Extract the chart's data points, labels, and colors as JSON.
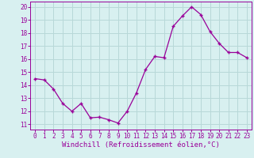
{
  "x": [
    0,
    1,
    2,
    3,
    4,
    5,
    6,
    7,
    8,
    9,
    10,
    11,
    12,
    13,
    14,
    15,
    16,
    17,
    18,
    19,
    20,
    21,
    22,
    23
  ],
  "y": [
    14.5,
    14.4,
    13.7,
    12.6,
    12.0,
    12.6,
    11.5,
    11.55,
    11.35,
    11.1,
    12.0,
    13.4,
    15.2,
    16.2,
    16.1,
    18.5,
    19.3,
    20.0,
    19.4,
    18.1,
    17.2,
    16.5,
    16.5,
    16.1
  ],
  "line_color": "#990099",
  "marker": "+",
  "background_color": "#d8f0f0",
  "grid_color": "#b8d8d8",
  "xlabel": "Windchill (Refroidissement éolien,°C)",
  "xlabel_color": "#990099",
  "yticks": [
    11,
    12,
    13,
    14,
    15,
    16,
    17,
    18,
    19,
    20
  ],
  "xticks": [
    0,
    1,
    2,
    3,
    4,
    5,
    6,
    7,
    8,
    9,
    10,
    11,
    12,
    13,
    14,
    15,
    16,
    17,
    18,
    19,
    20,
    21,
    22,
    23
  ],
  "ylim": [
    10.6,
    20.4
  ],
  "xlim": [
    -0.5,
    23.5
  ],
  "tick_color": "#990099",
  "tick_fontsize": 5.5,
  "xlabel_fontsize": 6.5,
  "spine_color": "#990099",
  "markersize": 3.5,
  "linewidth": 0.9
}
